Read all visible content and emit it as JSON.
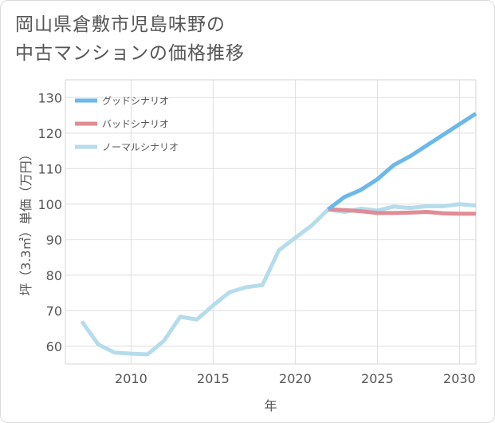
{
  "title_lines": [
    "岡山県倉敷市児島味野の",
    "中古マンションの価格推移"
  ],
  "chart_data": {
    "type": "line",
    "title": "岡山県倉敷市児島味野の中古マンションの価格推移",
    "xlabel": "年",
    "ylabel": "坪（3.3㎡）単価（万円）",
    "xlim": [
      2006,
      2031
    ],
    "ylim": [
      55,
      135
    ],
    "x_ticks": [
      2010,
      2015,
      2020,
      2025,
      2030
    ],
    "y_ticks": [
      60,
      70,
      80,
      90,
      100,
      110,
      120,
      130
    ],
    "grid": true,
    "legend_position": "top-left",
    "series": [
      {
        "name": "グッドシナリオ",
        "color": "#6bb8ea",
        "x": [
          2022,
          2023,
          2024,
          2025,
          2026,
          2027,
          2028,
          2029,
          2030,
          2031
        ],
        "values": [
          98.5,
          102,
          104,
          107,
          111,
          113.5,
          116.5,
          119.5,
          122.5,
          125.5
        ]
      },
      {
        "name": "バッドシナリオ",
        "color": "#e08c95",
        "x": [
          2022,
          2023,
          2024,
          2025,
          2026,
          2027,
          2028,
          2029,
          2030,
          2031
        ],
        "values": [
          98.5,
          98.3,
          98,
          97.5,
          97.5,
          97.6,
          97.8,
          97.4,
          97.3,
          97.3
        ]
      },
      {
        "name": "ノーマルシナリオ",
        "color": "#b5dcec",
        "x": [
          2007,
          2008,
          2009,
          2010,
          2011,
          2012,
          2013,
          2014,
          2015,
          2016,
          2017,
          2018,
          2019,
          2020,
          2021,
          2022,
          2023,
          2024,
          2025,
          2026,
          2027,
          2028,
          2029,
          2030,
          2031
        ],
        "values": [
          67,
          60.5,
          58.2,
          57.9,
          57.7,
          61.5,
          68.3,
          67.5,
          71.5,
          75.2,
          76.6,
          77.2,
          87,
          90.5,
          94,
          98.5,
          97.8,
          98.7,
          98.2,
          99.3,
          98.9,
          99.4,
          99.4,
          100,
          99.6
        ]
      }
    ]
  }
}
